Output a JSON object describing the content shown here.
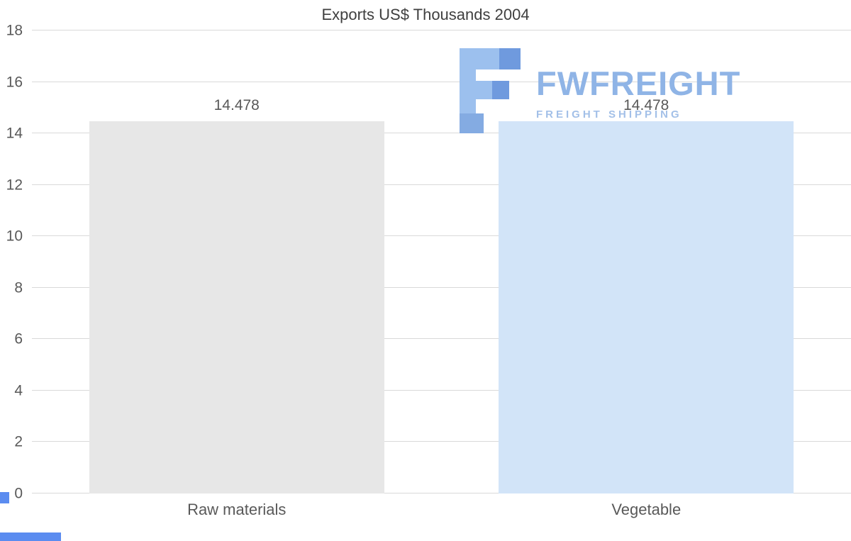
{
  "chart_data": {
    "type": "bar",
    "title": "Exports US$ Thousands 2004",
    "categories": [
      "Raw materials",
      "Vegetable"
    ],
    "values": [
      14.478,
      14.478
    ],
    "value_labels": [
      "14.478",
      "14.478"
    ],
    "bar_colors": [
      "#e7e7e7",
      "#d2e4f8"
    ],
    "xlabel": "",
    "ylabel": "",
    "ylim": [
      0,
      18
    ],
    "yticks": [
      0,
      2,
      4,
      6,
      8,
      10,
      12,
      14,
      16,
      18
    ],
    "grid": true,
    "legend": "none"
  },
  "watermark": {
    "brand": "FWFREIGHT",
    "tagline": "FREIGHT SHIPPING",
    "logo_icon": "fwfreight-logo-icon",
    "brand_color": "#8fb4e6",
    "tagline_color": "#a3c0e8"
  },
  "colors": {
    "title_text": "#3f3f3f",
    "axis_text": "#595959",
    "gridline": "#d9d9d9",
    "corner_accent": "#5b8cf0",
    "background": "#ffffff"
  }
}
